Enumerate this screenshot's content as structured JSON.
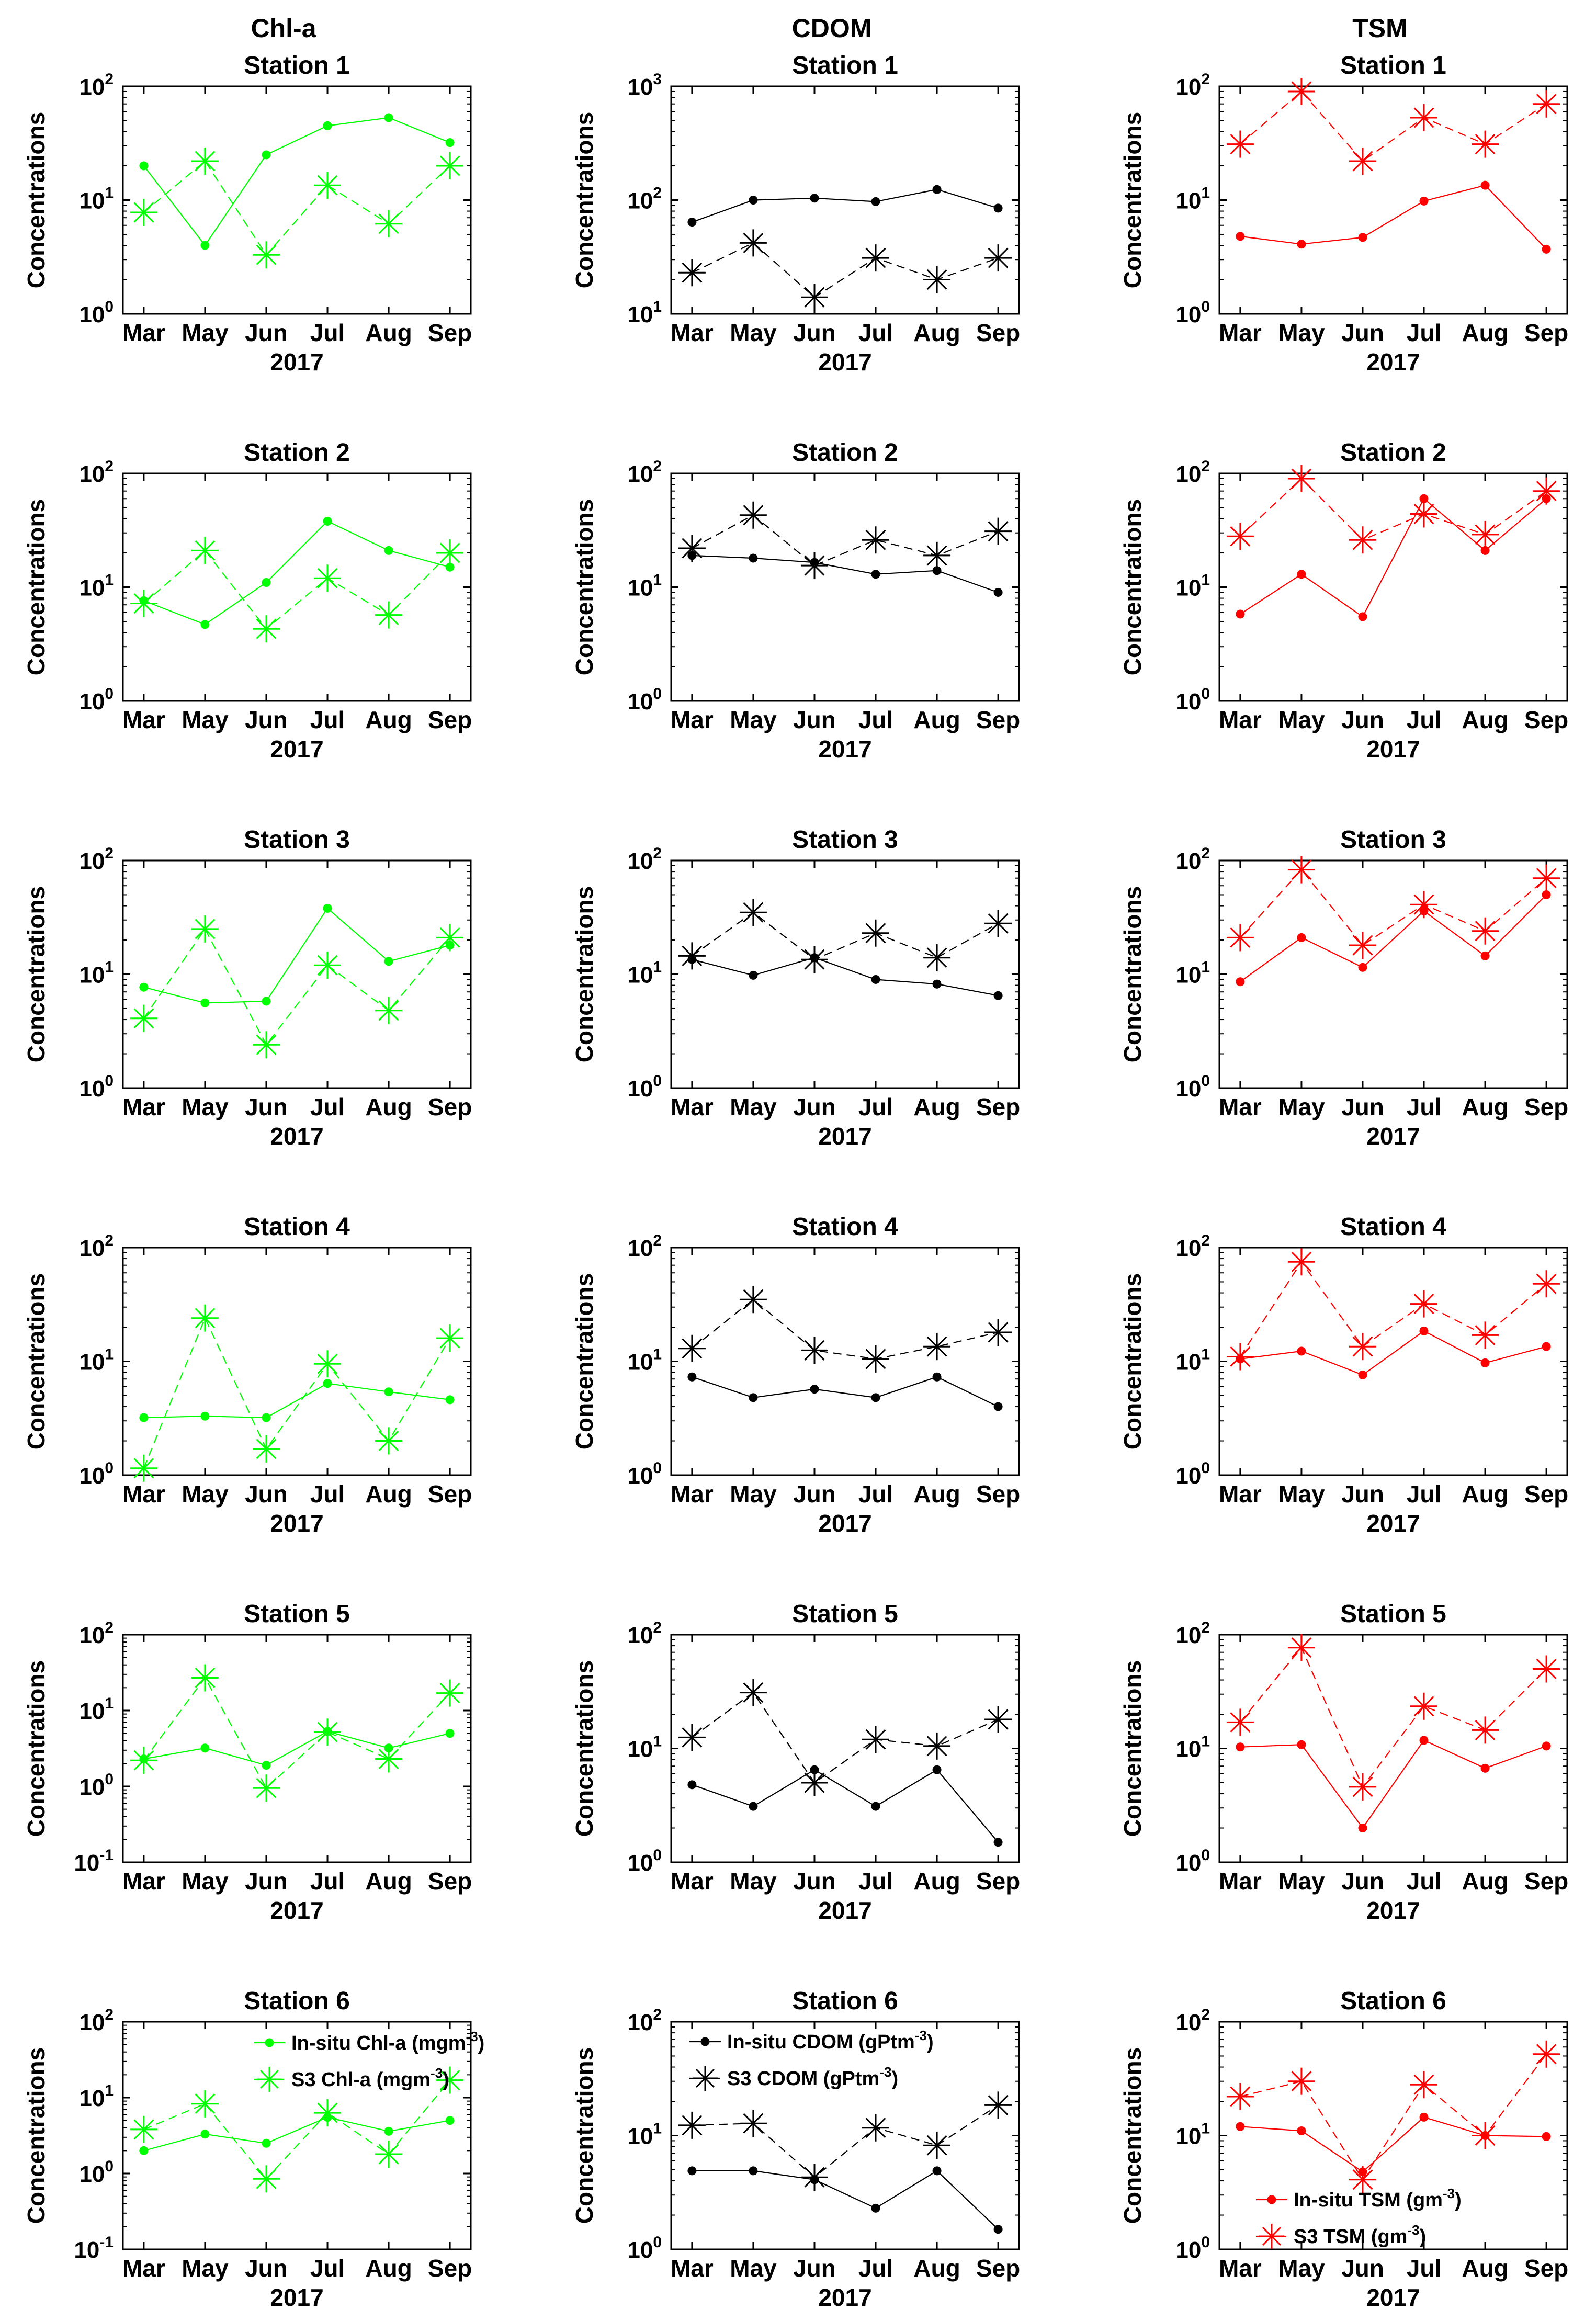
{
  "column_titles": [
    "Chl-a",
    "CDOM",
    "TSM"
  ],
  "colors": {
    "chla": "#00ff00",
    "cdom": "#000000",
    "tsm": "#ff0000"
  },
  "chart_data": [
    {
      "type": "line",
      "col": 0,
      "row": 0,
      "title": "Station 1",
      "xlabel": "2017",
      "ylabel": "Concentrations",
      "yscale": "log",
      "ylim": [
        1,
        100
      ],
      "yticks": [
        1,
        10,
        100
      ],
      "categories": [
        "Mar",
        "May",
        "Jun",
        "Jul",
        "Aug",
        "Sep"
      ],
      "series": [
        {
          "name": "In-situ Chl-a",
          "values": [
            20,
            4,
            25,
            45,
            53,
            32
          ]
        },
        {
          "name": "S3 Chl-a",
          "values": [
            7.8,
            22,
            3.3,
            13.5,
            6.2,
            20
          ]
        }
      ]
    },
    {
      "type": "line",
      "col": 1,
      "row": 0,
      "title": "Station 1",
      "xlabel": "2017",
      "ylabel": "Concentrations",
      "yscale": "log",
      "ylim": [
        10,
        1000
      ],
      "yticks": [
        10,
        100,
        1000
      ],
      "categories": [
        "Mar",
        "May",
        "Jun",
        "Jul",
        "Aug",
        "Sep"
      ],
      "series": [
        {
          "name": "In-situ CDOM",
          "values": [
            64,
            100,
            104,
            97,
            124,
            85
          ]
        },
        {
          "name": "S3 CDOM",
          "values": [
            23,
            42,
            14,
            31,
            20,
            31
          ]
        }
      ]
    },
    {
      "type": "line",
      "col": 2,
      "row": 0,
      "title": "Station 1",
      "xlabel": "2017",
      "ylabel": "Concentrations",
      "yscale": "log",
      "ylim": [
        1,
        100
      ],
      "yticks": [
        1,
        10,
        100
      ],
      "categories": [
        "Mar",
        "May",
        "Jun",
        "Jul",
        "Aug",
        "Sep"
      ],
      "series": [
        {
          "name": "In-situ TSM",
          "values": [
            4.8,
            4.1,
            4.7,
            9.8,
            13.5,
            3.7
          ]
        },
        {
          "name": "S3 TSM",
          "values": [
            31,
            90,
            22,
            53,
            31,
            70
          ]
        }
      ]
    },
    {
      "type": "line",
      "col": 0,
      "row": 1,
      "title": "Station 2",
      "xlabel": "2017",
      "ylabel": "Concentrations",
      "yscale": "log",
      "ylim": [
        1,
        100
      ],
      "yticks": [
        1,
        10,
        100
      ],
      "categories": [
        "Mar",
        "May",
        "Jun",
        "Jul",
        "Aug",
        "Sep"
      ],
      "series": [
        {
          "name": "In-situ Chl-a",
          "values": [
            7.6,
            4.7,
            11,
            38,
            21,
            15
          ]
        },
        {
          "name": "S3 Chl-a",
          "values": [
            7.2,
            21,
            4.3,
            12,
            5.7,
            20
          ]
        }
      ]
    },
    {
      "type": "line",
      "col": 1,
      "row": 1,
      "title": "Station 2",
      "xlabel": "2017",
      "ylabel": "Concentrations",
      "yscale": "log",
      "ylim": [
        1,
        100
      ],
      "yticks": [
        1,
        10,
        100
      ],
      "categories": [
        "Mar",
        "May",
        "Jun",
        "Jul",
        "Aug",
        "Sep"
      ],
      "series": [
        {
          "name": "In-situ CDOM",
          "values": [
            19,
            18,
            16.5,
            13,
            14,
            9
          ]
        },
        {
          "name": "S3 CDOM",
          "values": [
            22,
            43,
            15.5,
            26,
            19,
            31
          ]
        }
      ]
    },
    {
      "type": "line",
      "col": 2,
      "row": 1,
      "title": "Station 2",
      "xlabel": "2017",
      "ylabel": "Concentrations",
      "yscale": "log",
      "ylim": [
        1,
        100
      ],
      "yticks": [
        1,
        10,
        100
      ],
      "categories": [
        "Mar",
        "May",
        "Jun",
        "Jul",
        "Aug",
        "Sep"
      ],
      "series": [
        {
          "name": "In-situ TSM",
          "values": [
            5.8,
            13,
            5.5,
            60,
            21,
            60
          ]
        },
        {
          "name": "S3 TSM",
          "values": [
            28,
            90,
            26,
            44,
            29,
            70
          ]
        }
      ]
    },
    {
      "type": "line",
      "col": 0,
      "row": 2,
      "title": "Station 3",
      "xlabel": "2017",
      "ylabel": "Concentrations",
      "yscale": "log",
      "ylim": [
        1,
        100
      ],
      "yticks": [
        1,
        10,
        100
      ],
      "categories": [
        "Mar",
        "May",
        "Jun",
        "Jul",
        "Aug",
        "Sep"
      ],
      "series": [
        {
          "name": "In-situ Chl-a",
          "values": [
            7.7,
            5.6,
            5.8,
            38,
            13,
            18
          ]
        },
        {
          "name": "S3 Chl-a",
          "values": [
            4.1,
            25,
            2.4,
            12,
            4.8,
            21
          ]
        }
      ]
    },
    {
      "type": "line",
      "col": 1,
      "row": 2,
      "title": "Station 3",
      "xlabel": "2017",
      "ylabel": "Concentrations",
      "yscale": "log",
      "ylim": [
        1,
        100
      ],
      "yticks": [
        1,
        10,
        100
      ],
      "categories": [
        "Mar",
        "May",
        "Jun",
        "Jul",
        "Aug",
        "Sep"
      ],
      "series": [
        {
          "name": "In-situ CDOM",
          "values": [
            13.5,
            9.8,
            14,
            9,
            8.2,
            6.5
          ]
        },
        {
          "name": "S3 CDOM",
          "values": [
            14.5,
            35,
            13.5,
            23,
            14,
            28
          ]
        }
      ]
    },
    {
      "type": "line",
      "col": 2,
      "row": 2,
      "title": "Station 3",
      "xlabel": "2017",
      "ylabel": "Concentrations",
      "yscale": "log",
      "ylim": [
        1,
        100
      ],
      "yticks": [
        1,
        10,
        100
      ],
      "categories": [
        "Mar",
        "May",
        "Jun",
        "Jul",
        "Aug",
        "Sep"
      ],
      "series": [
        {
          "name": "In-situ TSM",
          "values": [
            8.6,
            21,
            11.5,
            36,
            14.5,
            50
          ]
        },
        {
          "name": "S3 TSM",
          "values": [
            21,
            83,
            18,
            41,
            24,
            70
          ]
        }
      ]
    },
    {
      "type": "line",
      "col": 0,
      "row": 3,
      "title": "Station 4",
      "xlabel": "2017",
      "ylabel": "Concentrations",
      "yscale": "log",
      "ylim": [
        1,
        100
      ],
      "yticks": [
        1,
        10,
        100
      ],
      "categories": [
        "Mar",
        "May",
        "Jun",
        "Jul",
        "Aug",
        "Sep"
      ],
      "series": [
        {
          "name": "In-situ Chl-a",
          "values": [
            3.2,
            3.3,
            3.2,
            6.4,
            5.4,
            4.6
          ]
        },
        {
          "name": "S3 Chl-a",
          "values": [
            1.15,
            24,
            1.7,
            9.5,
            2,
            16
          ]
        }
      ]
    },
    {
      "type": "line",
      "col": 1,
      "row": 3,
      "title": "Station 4",
      "xlabel": "2017",
      "ylabel": "Concentrations",
      "yscale": "log",
      "ylim": [
        1,
        100
      ],
      "yticks": [
        1,
        10,
        100
      ],
      "categories": [
        "Mar",
        "May",
        "Jun",
        "Jul",
        "Aug",
        "Sep"
      ],
      "series": [
        {
          "name": "In-situ CDOM",
          "values": [
            7.3,
            4.8,
            5.7,
            4.8,
            7.3,
            4
          ]
        },
        {
          "name": "S3 CDOM",
          "values": [
            13,
            35,
            12.5,
            10.5,
            13.5,
            18
          ]
        }
      ]
    },
    {
      "type": "line",
      "col": 2,
      "row": 3,
      "title": "Station 4",
      "xlabel": "2017",
      "ylabel": "Concentrations",
      "yscale": "log",
      "ylim": [
        1,
        100
      ],
      "yticks": [
        1,
        10,
        100
      ],
      "categories": [
        "Mar",
        "May",
        "Jun",
        "Jul",
        "Aug",
        "Sep"
      ],
      "series": [
        {
          "name": "In-situ TSM",
          "values": [
            10.5,
            12.3,
            7.6,
            18.5,
            9.7,
            13.5
          ]
        },
        {
          "name": "S3 TSM",
          "values": [
            11,
            75,
            13.5,
            32,
            17,
            48
          ]
        }
      ]
    },
    {
      "type": "line",
      "col": 0,
      "row": 4,
      "title": "Station 5",
      "xlabel": "2017",
      "ylabel": "Concentrations",
      "yscale": "log",
      "ylim": [
        0.1,
        100
      ],
      "yticks": [
        0.1,
        1,
        10,
        100
      ],
      "categories": [
        "Mar",
        "May",
        "Jun",
        "Jul",
        "Aug",
        "Sep"
      ],
      "series": [
        {
          "name": "In-situ Chl-a",
          "values": [
            2.3,
            3.2,
            1.9,
            5.3,
            3.2,
            5
          ]
        },
        {
          "name": "S3 Chl-a",
          "values": [
            2.2,
            27,
            0.95,
            5.2,
            2.3,
            17
          ]
        }
      ]
    },
    {
      "type": "line",
      "col": 1,
      "row": 4,
      "title": "Station 5",
      "xlabel": "2017",
      "ylabel": "Concentrations",
      "yscale": "log",
      "ylim": [
        1,
        100
      ],
      "yticks": [
        1,
        10,
        100
      ],
      "categories": [
        "Mar",
        "May",
        "Jun",
        "Jul",
        "Aug",
        "Sep"
      ],
      "series": [
        {
          "name": "In-situ CDOM",
          "values": [
            4.8,
            3.1,
            6.5,
            3.1,
            6.5,
            1.5
          ]
        },
        {
          "name": "S3 CDOM",
          "values": [
            12.5,
            31,
            5,
            12,
            10.5,
            18
          ]
        }
      ]
    },
    {
      "type": "line",
      "col": 2,
      "row": 4,
      "title": "Station 5",
      "xlabel": "2017",
      "ylabel": "Concentrations",
      "yscale": "log",
      "ylim": [
        1,
        100
      ],
      "yticks": [
        1,
        10,
        100
      ],
      "categories": [
        "Mar",
        "May",
        "Jun",
        "Jul",
        "Aug",
        "Sep"
      ],
      "series": [
        {
          "name": "In-situ TSM",
          "values": [
            10.3,
            10.8,
            2,
            11.8,
            6.7,
            10.5
          ]
        },
        {
          "name": "S3 TSM",
          "values": [
            17,
            77,
            4.6,
            23.5,
            14.5,
            50
          ]
        }
      ]
    },
    {
      "type": "line",
      "col": 0,
      "row": 5,
      "title": "Station 6",
      "xlabel": "2017",
      "ylabel": "Concentrations",
      "yscale": "log",
      "ylim": [
        0.1,
        100
      ],
      "yticks": [
        0.1,
        1,
        10,
        100
      ],
      "categories": [
        "Mar",
        "May",
        "Jun",
        "Jul",
        "Aug",
        "Sep"
      ],
      "series": [
        {
          "name": "In-situ Chl-a",
          "values": [
            2,
            3.3,
            2.5,
            5.5,
            3.6,
            5
          ]
        },
        {
          "name": "S3 Chl-a",
          "values": [
            3.8,
            8.3,
            0.85,
            6.3,
            1.8,
            17
          ]
        }
      ],
      "legend": {
        "position": "top-center",
        "entries": [
          {
            "label": "In-situ Chl-a (mgm",
            "sup": "-3",
            "tail": ")"
          },
          {
            "label": "S3 Chl-a (mgm",
            "sup": "-3",
            "tail": ")"
          }
        ]
      }
    },
    {
      "type": "line",
      "col": 1,
      "row": 5,
      "title": "Station 6",
      "xlabel": "2017",
      "ylabel": "Concentrations",
      "yscale": "log",
      "ylim": [
        1,
        100
      ],
      "yticks": [
        1,
        10,
        100
      ],
      "categories": [
        "Mar",
        "May",
        "Jun",
        "Jul",
        "Aug",
        "Sep"
      ],
      "series": [
        {
          "name": "In-situ CDOM",
          "values": [
            4.9,
            4.9,
            4.1,
            2.3,
            4.9,
            1.5
          ]
        },
        {
          "name": "S3 CDOM",
          "values": [
            12.3,
            12.8,
            4.3,
            11.7,
            8.2,
            18.5
          ]
        }
      ],
      "legend": {
        "position": "top-left",
        "entries": [
          {
            "label": "In-situ CDOM (gPtm",
            "sup": "-3",
            "tail": ")"
          },
          {
            "label": "S3 CDOM (gPtm",
            "sup": "-3",
            "tail": ")"
          }
        ]
      }
    },
    {
      "type": "line",
      "col": 2,
      "row": 5,
      "title": "Station 6",
      "xlabel": "2017",
      "ylabel": "Concentrations",
      "yscale": "log",
      "ylim": [
        1,
        100
      ],
      "yticks": [
        1,
        10,
        100
      ],
      "categories": [
        "Mar",
        "May",
        "Jun",
        "Jul",
        "Aug",
        "Sep"
      ],
      "series": [
        {
          "name": "In-situ TSM",
          "values": [
            12,
            11,
            4.8,
            14.5,
            10,
            9.8
          ]
        },
        {
          "name": "S3 TSM",
          "values": [
            22,
            30,
            4.1,
            28,
            10,
            52
          ]
        }
      ],
      "legend": {
        "position": "bottom-center",
        "entries": [
          {
            "label": "In-situ TSM (gm",
            "sup": "-3",
            "tail": ")"
          },
          {
            "label": "S3 TSM (gm",
            "sup": "-3",
            "tail": ")"
          }
        ]
      }
    }
  ]
}
